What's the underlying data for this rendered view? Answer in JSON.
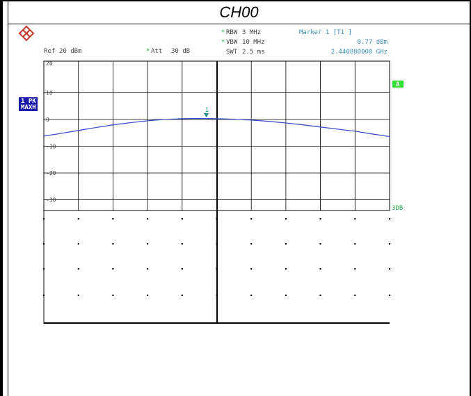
{
  "page": {
    "title": "CH00"
  },
  "header": {
    "ref_label": "Ref",
    "ref_value": "20 dBm",
    "att_label": "Att",
    "att_value": "30 dB",
    "rbw_label": "RBW",
    "rbw_value": "3 MHz",
    "vbw_label": "VBW",
    "vbw_value": "10 MHz",
    "swt_label": "SWT",
    "swt_value": "2.5 ms",
    "marker_title": "Marker 1 [T1 ]",
    "marker_level": "0.77 dBm",
    "marker_freq": "2.440880000 GHz"
  },
  "side_labels": {
    "trace_box_line1": "1 PK",
    "trace_box_line2": "MAXH",
    "a_badge": "A",
    "db_badge": "3DB"
  },
  "chart_data": {
    "type": "line",
    "ylim": [
      -40,
      20
    ],
    "y_ticks": [
      20,
      10,
      0,
      -10,
      -20,
      -30
    ],
    "y_tick_labels": [
      "20",
      "10",
      "0",
      "-10",
      "-20",
      "-30"
    ],
    "grid": true,
    "series": [
      {
        "color": "#3f4fcf",
        "x_frac": [
          0,
          0.05,
          0.1,
          0.15,
          0.2,
          0.25,
          0.3,
          0.35,
          0.4,
          0.45,
          0.5,
          0.55,
          0.6,
          0.65,
          0.7,
          0.75,
          0.8,
          0.85,
          0.9,
          0.95,
          1
        ],
        "y": [
          -6.2,
          -5.2,
          -4.1,
          -3.0,
          -2.0,
          -1.2,
          -0.5,
          0.0,
          0.3,
          0.4,
          0.3,
          0.1,
          -0.2,
          -0.7,
          -1.3,
          -2.0,
          -2.8,
          -3.6,
          -4.4,
          -5.4,
          -6.4
        ]
      }
    ],
    "marker": {
      "label": "1",
      "x_frac": 0.47,
      "y": 0.77,
      "color": "#1a8a8a"
    }
  }
}
